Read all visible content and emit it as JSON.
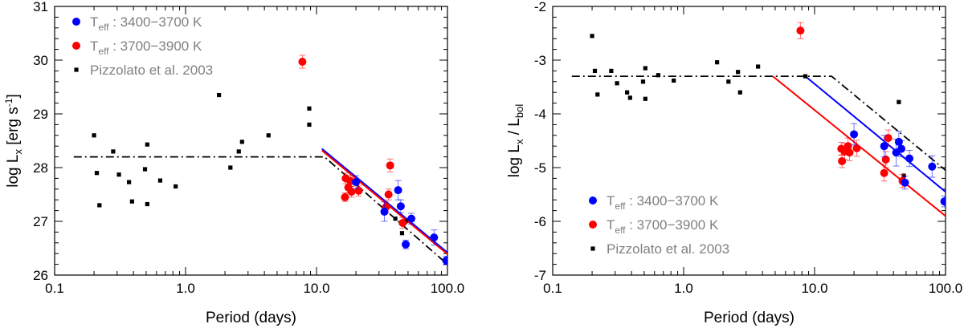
{
  "chart_data": [
    {
      "type": "scatter",
      "xlabel": "Period (days)",
      "ylabel": "log L",
      "ylabel_sub": "x",
      "ylabel_unit": "[erg s",
      "ylabel_unit_sup": "-1",
      "ylabel_unit_close": "]",
      "xscale": "log",
      "xlim": [
        0.1,
        100
      ],
      "ylim": [
        26,
        31
      ],
      "xticks": [
        {
          "v": 0.1,
          "label": "0.1"
        },
        {
          "v": 1,
          "label": "1.0"
        },
        {
          "v": 10,
          "label": "10.0"
        },
        {
          "v": 100,
          "label": "100.0"
        }
      ],
      "yticks": [
        {
          "v": 26,
          "label": "26"
        },
        {
          "v": 27,
          "label": "27"
        },
        {
          "v": 28,
          "label": "28"
        },
        {
          "v": 29,
          "label": "29"
        },
        {
          "v": 30,
          "label": "30"
        },
        {
          "v": 31,
          "label": "31"
        }
      ],
      "legend_position": "top-left",
      "legend": [
        {
          "marker": "circle",
          "color": "#0000ff",
          "main": "T",
          "sub": "eff",
          "rest": " : 3400−3700 K"
        },
        {
          "marker": "circle",
          "color": "#ff0000",
          "main": "T",
          "sub": "eff",
          "rest": " : 3700−3900 K"
        },
        {
          "marker": "square",
          "color": "#000000",
          "main": "Pizzolato et al. 2003",
          "sub": "",
          "rest": ""
        }
      ],
      "series": [
        {
          "name": "Pizzolato et al. 2003",
          "marker": "square",
          "color": "#000000",
          "points": [
            [
              0.2,
              28.6
            ],
            [
              0.21,
              27.9
            ],
            [
              0.22,
              27.3
            ],
            [
              0.28,
              28.3
            ],
            [
              0.31,
              27.87
            ],
            [
              0.37,
              27.73
            ],
            [
              0.39,
              27.37
            ],
            [
              0.49,
              27.97
            ],
            [
              0.51,
              27.32
            ],
            [
              0.51,
              28.43
            ],
            [
              0.64,
              27.76
            ],
            [
              0.84,
              27.65
            ],
            [
              1.8,
              29.35
            ],
            [
              2.2,
              28.0
            ],
            [
              2.55,
              28.3
            ],
            [
              2.7,
              28.48
            ],
            [
              4.3,
              28.6
            ],
            [
              8.8,
              28.8
            ],
            [
              8.8,
              29.1
            ],
            [
              40,
              27.05
            ],
            [
              45,
              26.78
            ],
            [
              48,
              27.0
            ]
          ]
        },
        {
          "name": "Teff 3700-3900 K",
          "marker": "circle",
          "color": "#ff0000",
          "points": [
            [
              7.8,
              29.97,
              0.12
            ],
            [
              16.5,
              27.45,
              0.08
            ],
            [
              16.7,
              27.8,
              0.1
            ],
            [
              17.5,
              27.63,
              0.1
            ],
            [
              18.2,
              27.75,
              0.1
            ],
            [
              18.5,
              27.55,
              0.1
            ],
            [
              21,
              27.57,
              0.1
            ],
            [
              34,
              27.27,
              0.1
            ],
            [
              35.5,
              27.5,
              0.1
            ],
            [
              36.5,
              28.04,
              0.12
            ],
            [
              45.5,
              26.97,
              0.1
            ]
          ]
        },
        {
          "name": "Teff 3400-3700 K",
          "marker": "circle",
          "color": "#0000ff",
          "points": [
            [
              20,
              27.73,
              0.12
            ],
            [
              33,
              27.18,
              0.18
            ],
            [
              42,
              27.58,
              0.18
            ],
            [
              44,
              27.28,
              0.12
            ],
            [
              48,
              26.57,
              0.08
            ],
            [
              53,
              27.05,
              0.1
            ],
            [
              79,
              26.7,
              0.14
            ],
            [
              98,
              26.27,
              0.08
            ]
          ]
        }
      ],
      "lines": [
        {
          "style": "dashdot",
          "color": "#000000",
          "points": [
            [
              0.14,
              28.2
            ],
            [
              11.5,
              28.2
            ],
            [
              100,
              26.2
            ]
          ]
        },
        {
          "style": "solid",
          "color": "#0000ff",
          "points": [
            [
              11,
              28.35
            ],
            [
              100,
              26.42
            ]
          ]
        },
        {
          "style": "solid",
          "color": "#ff0000",
          "points": [
            [
              11,
              28.32
            ],
            [
              100,
              26.39
            ]
          ]
        }
      ]
    },
    {
      "type": "scatter",
      "xlabel": "Period (days)",
      "ylabel": "log  L",
      "ylabel_sub": "x",
      "ylabel_mid": " / L",
      "ylabel_sub2": "bol",
      "xscale": "log",
      "xlim": [
        0.1,
        100
      ],
      "ylim": [
        -7,
        -2
      ],
      "xticks": [
        {
          "v": 0.1,
          "label": "0.1"
        },
        {
          "v": 1,
          "label": "1.0"
        },
        {
          "v": 10,
          "label": "10.0"
        },
        {
          "v": 100,
          "label": "100.0"
        }
      ],
      "yticks": [
        {
          "v": -7,
          "label": "-7"
        },
        {
          "v": -6,
          "label": "-6"
        },
        {
          "v": -5,
          "label": "-5"
        },
        {
          "v": -4,
          "label": "-4"
        },
        {
          "v": -3,
          "label": "-3"
        },
        {
          "v": -2,
          "label": "-2"
        }
      ],
      "legend_position": "bottom-left",
      "legend": [
        {
          "marker": "circle",
          "color": "#0000ff",
          "main": "T",
          "sub": "eff",
          "rest": " : 3400−3700 K"
        },
        {
          "marker": "circle",
          "color": "#ff0000",
          "main": "T",
          "sub": "eff",
          "rest": " : 3700−3900 K"
        },
        {
          "marker": "square",
          "color": "#000000",
          "main": "Pizzolato et al. 2003",
          "sub": "",
          "rest": ""
        }
      ],
      "series": [
        {
          "name": "Pizzolato et al. 2003",
          "marker": "square",
          "color": "#000000",
          "points": [
            [
              0.2,
              -2.55
            ],
            [
              0.21,
              -3.2
            ],
            [
              0.22,
              -3.64
            ],
            [
              0.28,
              -3.2
            ],
            [
              0.31,
              -3.43
            ],
            [
              0.37,
              -3.6
            ],
            [
              0.39,
              -3.7
            ],
            [
              0.49,
              -3.4
            ],
            [
              0.51,
              -3.72
            ],
            [
              0.51,
              -3.15
            ],
            [
              0.64,
              -3.28
            ],
            [
              0.84,
              -3.38
            ],
            [
              1.8,
              -3.04
            ],
            [
              2.2,
              -3.4
            ],
            [
              2.6,
              -3.22
            ],
            [
              2.7,
              -3.6
            ],
            [
              3.7,
              -3.12
            ],
            [
              8.5,
              -3.3
            ],
            [
              44,
              -3.78
            ],
            [
              48,
              -5.15
            ]
          ]
        },
        {
          "name": "Teff 3700-3900 K",
          "marker": "circle",
          "color": "#ff0000",
          "points": [
            [
              7.8,
              -2.45,
              0.15
            ],
            [
              16,
              -4.65,
              0.12
            ],
            [
              16.2,
              -4.88,
              0.12
            ],
            [
              17,
              -4.7,
              0.15
            ],
            [
              18,
              -4.6,
              0.15
            ],
            [
              18.5,
              -4.72,
              0.15
            ],
            [
              21,
              -4.64,
              0.15
            ],
            [
              34,
              -5.1,
              0.15
            ],
            [
              35,
              -4.85,
              0.15
            ],
            [
              36.5,
              -4.45,
              0.15
            ],
            [
              47,
              -5.25,
              0.12
            ]
          ]
        },
        {
          "name": "Teff 3400-3700 K",
          "marker": "circle",
          "color": "#0000ff",
          "points": [
            [
              20,
              -4.38,
              0.2
            ],
            [
              34,
              -4.6,
              0.2
            ],
            [
              42,
              -4.72,
              0.25
            ],
            [
              44,
              -4.52,
              0.2
            ],
            [
              46,
              -4.65,
              0.15
            ],
            [
              49,
              -5.28,
              0.12
            ],
            [
              53,
              -4.83,
              0.15
            ],
            [
              79,
              -4.98,
              0.2
            ],
            [
              98,
              -5.63,
              0.1
            ]
          ]
        }
      ],
      "lines": [
        {
          "style": "dashdot",
          "color": "#000000",
          "points": [
            [
              0.14,
              -3.3
            ],
            [
              13.5,
              -3.3
            ],
            [
              100,
              -5.05
            ]
          ]
        },
        {
          "style": "solid",
          "color": "#0000ff",
          "points": [
            [
              8.5,
              -3.3
            ],
            [
              100,
              -5.45
            ]
          ]
        },
        {
          "style": "solid",
          "color": "#ff0000",
          "points": [
            [
              4.8,
              -3.3
            ],
            [
              100,
              -5.9
            ]
          ]
        }
      ]
    }
  ]
}
